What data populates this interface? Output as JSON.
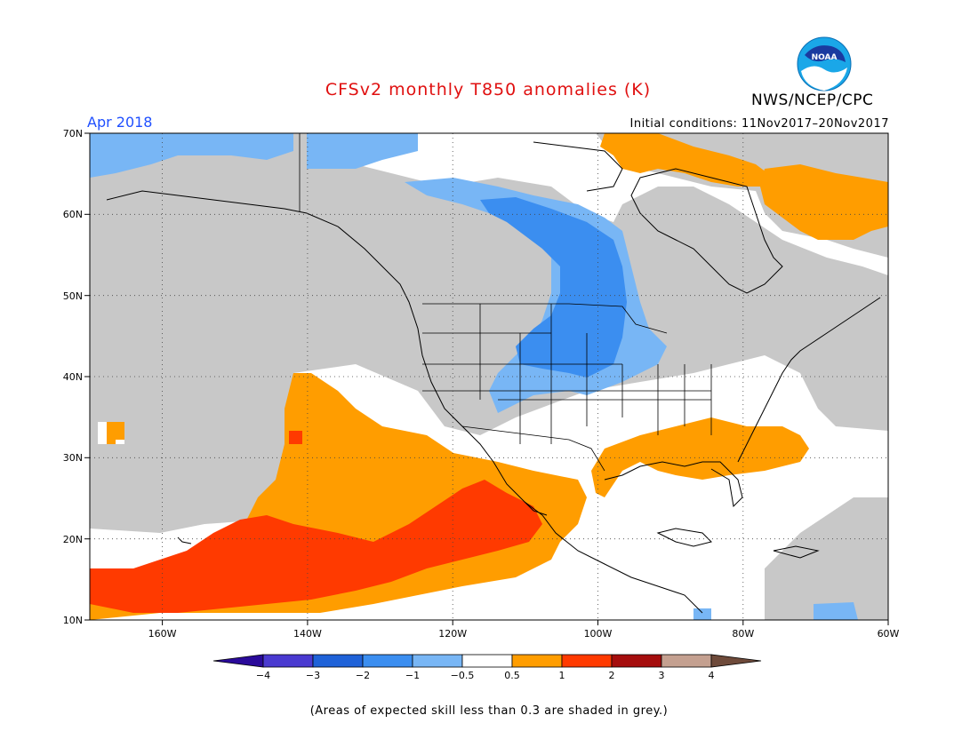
{
  "title": "CFSv2 monthly T850 anomalies (K)",
  "organization": "NWS/NCEP/CPC",
  "logo_text": "NOAA",
  "forecast_month": "Apr 2018",
  "initial_conditions": "Initial conditions: 11Nov2017–20Nov2017",
  "footnote": "(Areas of expected skill less than 0.3 are shaded in grey.)",
  "colors": {
    "title": "#e01010",
    "period": "#2050ff",
    "grey_low_skill": "#c8c8c8",
    "neutral": "#ffffff"
  },
  "map": {
    "lon_range": [
      -170,
      -60
    ],
    "lat_range": [
      10,
      70
    ],
    "lon_ticks": [
      "160W",
      "140W",
      "120W",
      "100W",
      "80W",
      "60W"
    ],
    "lat_ticks": [
      "70N",
      "60N",
      "50N",
      "40N",
      "30N",
      "20N",
      "10N"
    ],
    "gridlines": "dotted",
    "features": [
      "coastlines",
      "US state borders",
      "national borders"
    ]
  },
  "colorbar": {
    "bins": [
      {
        "from": null,
        "to": -4,
        "color": "#2a0a9a"
      },
      {
        "from": -4,
        "to": -3,
        "color": "#4a3ad0"
      },
      {
        "from": -3,
        "to": -2,
        "color": "#1f62d8"
      },
      {
        "from": -2,
        "to": -1,
        "color": "#3b8ef0"
      },
      {
        "from": -1,
        "to": -0.5,
        "color": "#78b6f5"
      },
      {
        "from": -0.5,
        "to": 0.5,
        "color": "#ffffff"
      },
      {
        "from": 0.5,
        "to": 1,
        "color": "#ff9d00"
      },
      {
        "from": 1,
        "to": 2,
        "color": "#ff3a00"
      },
      {
        "from": 2,
        "to": 3,
        "color": "#a50d0d"
      },
      {
        "from": 3,
        "to": 4,
        "color": "#c4a090"
      },
      {
        "from": 4,
        "to": null,
        "color": "#6e4a3a"
      }
    ],
    "labels": [
      "−4",
      "−3",
      "−2",
      "−1",
      "−0.5",
      "0.5",
      "1",
      "2",
      "3",
      "4"
    ]
  }
}
